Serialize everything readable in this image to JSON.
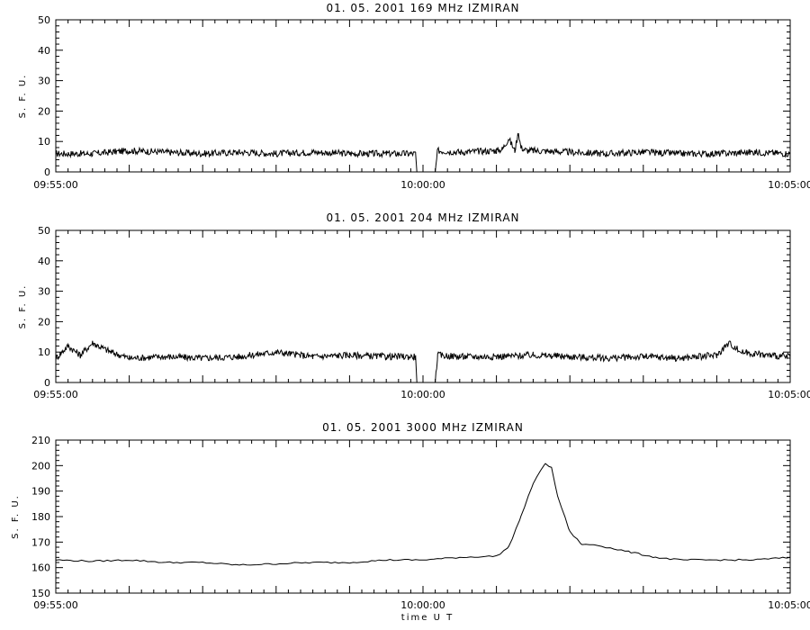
{
  "chart_data": [
    {
      "type": "line",
      "title": "01. 05. 2001   169 MHz   IZMIRAN",
      "ylabel": "S. F. U.",
      "xlabel": "",
      "ylim": [
        0,
        50
      ],
      "yticks": [
        0,
        10,
        20,
        30,
        40,
        50
      ],
      "xlim": [
        "09:55:00",
        "10:05:00"
      ],
      "xticks": [
        "09:55:00",
        "10:00:00",
        "10:05:00"
      ],
      "series": [
        {
          "x": [
            "09:55:00",
            "09:55:30",
            "09:56:00",
            "09:56:30",
            "09:57:00",
            "09:57:30",
            "09:58:00",
            "09:58:30",
            "09:59:00",
            "09:59:30",
            "09:59:54",
            "09:59:55",
            "10:00:10",
            "10:00:12",
            "10:00:30",
            "10:01:00",
            "10:01:05",
            "10:01:10",
            "10:01:15",
            "10:01:18",
            "10:01:20",
            "10:01:25",
            "10:01:30",
            "10:02:00",
            "10:02:30",
            "10:03:00",
            "10:03:30",
            "10:04:00",
            "10:04:30",
            "10:05:00"
          ],
          "y": [
            6,
            6,
            7,
            6.5,
            6,
            6.5,
            6,
            6.5,
            6,
            6,
            6,
            0,
            0,
            7,
            6.5,
            7,
            7.5,
            11,
            7,
            13,
            8,
            7,
            7,
            6.5,
            6,
            6.5,
            6,
            6,
            6.5,
            6
          ]
        }
      ]
    },
    {
      "type": "line",
      "title": "01. 05. 2001   204 MHz   IZMIRAN",
      "ylabel": "S. F. U.",
      "xlabel": "",
      "ylim": [
        0,
        50
      ],
      "yticks": [
        0,
        10,
        20,
        30,
        40,
        50
      ],
      "xlim": [
        "09:55:00",
        "10:05:00"
      ],
      "xticks": [
        "09:55:00",
        "10:00:00",
        "10:05:00"
      ],
      "series": [
        {
          "x": [
            "09:55:00",
            "09:55:10",
            "09:55:20",
            "09:55:30",
            "09:55:45",
            "09:56:00",
            "09:56:30",
            "09:57:00",
            "09:57:30",
            "09:58:00",
            "09:58:30",
            "09:59:00",
            "09:59:30",
            "09:59:54",
            "09:59:55",
            "10:00:10",
            "10:00:12",
            "10:00:30",
            "10:01:00",
            "10:01:30",
            "10:02:00",
            "10:02:30",
            "10:03:00",
            "10:03:30",
            "10:04:00",
            "10:04:10",
            "10:04:20",
            "10:04:40",
            "10:05:00"
          ],
          "y": [
            8,
            12,
            9,
            13,
            10,
            8,
            8.5,
            8,
            8.5,
            10,
            8.5,
            9,
            8.5,
            8.5,
            0,
            0,
            9,
            8.5,
            8.5,
            9,
            8.5,
            8,
            8.5,
            8,
            9,
            13,
            10,
            9,
            8.5
          ]
        }
      ]
    },
    {
      "type": "line",
      "title": "01. 05. 2001   3000 MHz   IZMIRAN",
      "ylabel": "S. F. U.",
      "xlabel": "time  U T",
      "ylim": [
        150,
        210
      ],
      "yticks": [
        150,
        160,
        170,
        180,
        190,
        200,
        210
      ],
      "xlim": [
        "09:55:00",
        "10:05:00"
      ],
      "xticks": [
        "09:55:00",
        "10:00:00",
        "10:05:00"
      ],
      "series": [
        {
          "x": [
            "09:55:00",
            "09:55:30",
            "09:56:00",
            "09:56:30",
            "09:57:00",
            "09:57:30",
            "09:58:00",
            "09:58:30",
            "09:59:00",
            "09:59:30",
            "10:00:00",
            "10:00:30",
            "10:01:00",
            "10:01:10",
            "10:01:20",
            "10:01:30",
            "10:01:40",
            "10:01:45",
            "10:01:50",
            "10:02:00",
            "10:02:10",
            "10:02:20",
            "10:02:30",
            "10:02:50",
            "10:03:10",
            "10:03:30",
            "10:04:00",
            "10:04:30",
            "10:05:00"
          ],
          "y": [
            163,
            162.5,
            163,
            162,
            162,
            161,
            161.5,
            162,
            162,
            163,
            163,
            164,
            164.5,
            168,
            180,
            193,
            201,
            199,
            188,
            174,
            169,
            169,
            168,
            166,
            164,
            163,
            163,
            163,
            164
          ]
        }
      ]
    }
  ]
}
